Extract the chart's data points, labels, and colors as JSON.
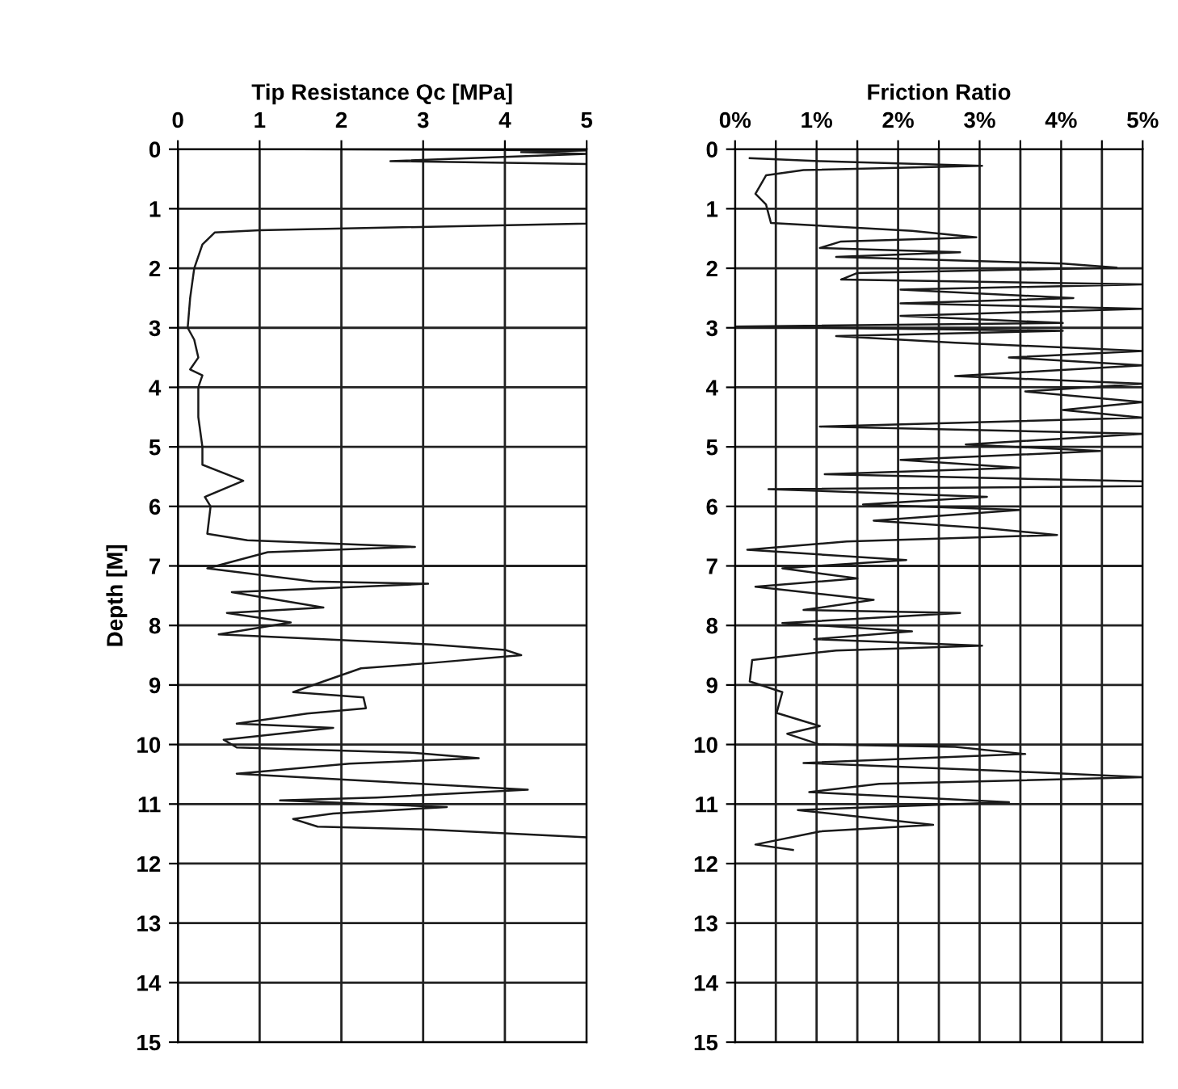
{
  "chart_data": [
    {
      "type": "line",
      "title": "Tip Resistance Qc [MPa]",
      "ylabel": "Depth [M]",
      "xlim": [
        0,
        5
      ],
      "xticks": [
        0,
        1,
        2,
        3,
        4,
        5
      ],
      "ylim": [
        15,
        0
      ],
      "yticks": [
        0,
        1,
        2,
        3,
        4,
        5,
        6,
        7,
        8,
        9,
        10,
        11,
        12,
        13,
        14,
        15
      ],
      "grid": true,
      "legend": false,
      "marker": "none",
      "line_style": "solid",
      "series": [
        {
          "color": "#1a1a1a",
          "x": [
            1.5,
            5.0,
            4.2,
            5.0,
            2.6,
            5.0,
            5.0,
            5.0,
            1.0,
            0.45,
            0.3,
            0.2,
            0.15,
            0.12,
            0.2,
            0.25,
            0.15,
            0.3,
            0.25,
            0.25,
            0.3,
            0.3,
            0.8,
            0.33,
            0.4,
            0.36,
            0.85,
            2.9,
            1.1,
            0.36,
            1.65,
            3.06,
            0.66,
            1.78,
            0.6,
            1.38,
            0.5,
            1.78,
            3.1,
            4.0,
            4.2,
            3.1,
            2.24,
            1.78,
            1.41,
            2.27,
            2.3,
            1.58,
            0.72,
            1.9,
            0.56,
            0.72,
            2.9,
            3.68,
            2.1,
            0.72,
            2.57,
            4.28,
            2.43,
            1.25,
            3.29,
            1.9,
            1.41,
            1.71,
            3.1,
            5.0
          ],
          "values": [
            0.0,
            0.02,
            0.05,
            0.08,
            0.2,
            0.25,
            0.3,
            1.25,
            1.36,
            1.4,
            1.6,
            2.0,
            2.5,
            3.0,
            3.2,
            3.5,
            3.7,
            3.8,
            4.0,
            4.5,
            5.0,
            5.3,
            5.57,
            5.84,
            6.0,
            6.46,
            6.57,
            6.68,
            6.77,
            7.04,
            7.26,
            7.3,
            7.44,
            7.7,
            7.79,
            7.95,
            8.15,
            8.23,
            8.32,
            8.41,
            8.5,
            8.63,
            8.72,
            8.94,
            9.12,
            9.21,
            9.39,
            9.48,
            9.65,
            9.72,
            9.92,
            10.05,
            10.14,
            10.23,
            10.32,
            10.49,
            10.63,
            10.76,
            10.89,
            10.94,
            11.05,
            11.16,
            11.25,
            11.38,
            11.43,
            11.56
          ]
        }
      ]
    },
    {
      "type": "line",
      "title": "Friction Ratio",
      "xlim": [
        0,
        5
      ],
      "xticks": [
        {
          "value": 0,
          "label": "0%"
        },
        {
          "value": 0.5,
          "label": null
        },
        {
          "value": 1,
          "label": "1%"
        },
        {
          "value": 1.5,
          "label": null
        },
        {
          "value": 2,
          "label": "2%"
        },
        {
          "value": 2.5,
          "label": null
        },
        {
          "value": 3,
          "label": "3%"
        },
        {
          "value": 3.5,
          "label": null
        },
        {
          "value": 4,
          "label": "4%"
        },
        {
          "value": 4.5,
          "label": null
        },
        {
          "value": 5,
          "label": "5%"
        }
      ],
      "ylim": [
        15,
        0
      ],
      "yticks": [
        0,
        1,
        2,
        3,
        4,
        5,
        6,
        7,
        8,
        9,
        10,
        11,
        12,
        13,
        14,
        15
      ],
      "grid": true,
      "legend": false,
      "marker": "none",
      "line_style": "solid",
      "series": [
        {
          "color": "#1a1a1a",
          "x": [
            0.18,
            1.04,
            3.03,
            0.84,
            0.38,
            0.25,
            0.38,
            0.44,
            2.17,
            2.96,
            1.3,
            1.04,
            2.76,
            1.24,
            4.02,
            4.68,
            1.5,
            1.3,
            5.0,
            2.03,
            4.15,
            2.03,
            5.0,
            2.03,
            4.02,
            0.0,
            4.02,
            1.24,
            2.7,
            5.0,
            3.36,
            5.0,
            2.7,
            5.0,
            3.56,
            5.0,
            4.02,
            5.0,
            1.04,
            5.0,
            2.83,
            4.48,
            2.03,
            3.49,
            1.1,
            5.0,
            5.0,
            0.41,
            3.09,
            1.57,
            3.49,
            1.7,
            3.09,
            3.95,
            1.37,
            0.15,
            2.1,
            0.58,
            1.5,
            0.25,
            1.7,
            0.84,
            2.76,
            0.58,
            2.17,
            0.97,
            3.03,
            1.24,
            0.21,
            0.18,
            0.58,
            0.51,
            1.04,
            0.64,
            1.04,
            2.7,
            3.56,
            0.84,
            3.23,
            5.0,
            1.77,
            0.91,
            3.36,
            0.77,
            2.43,
            1.04,
            0.25,
            0.71
          ],
          "values": [
            0.15,
            0.2,
            0.28,
            0.35,
            0.44,
            0.75,
            0.93,
            1.24,
            1.37,
            1.48,
            1.55,
            1.66,
            1.73,
            1.81,
            1.92,
            1.99,
            2.08,
            2.19,
            2.27,
            2.36,
            2.5,
            2.59,
            2.68,
            2.8,
            2.92,
            2.98,
            3.05,
            3.14,
            3.25,
            3.39,
            3.5,
            3.63,
            3.81,
            3.94,
            4.07,
            4.25,
            4.38,
            4.51,
            4.66,
            4.78,
            4.96,
            5.07,
            5.22,
            5.35,
            5.46,
            5.58,
            5.66,
            5.71,
            5.84,
            5.97,
            6.06,
            6.24,
            6.37,
            6.48,
            6.59,
            6.73,
            6.9,
            7.04,
            7.21,
            7.35,
            7.57,
            7.74,
            7.79,
            7.96,
            8.1,
            8.23,
            8.34,
            8.42,
            8.58,
            8.94,
            9.12,
            9.47,
            9.69,
            9.82,
            10.0,
            10.04,
            10.16,
            10.31,
            10.44,
            10.55,
            10.66,
            10.8,
            10.97,
            11.1,
            11.35,
            11.46,
            11.68,
            11.77
          ]
        }
      ]
    }
  ]
}
